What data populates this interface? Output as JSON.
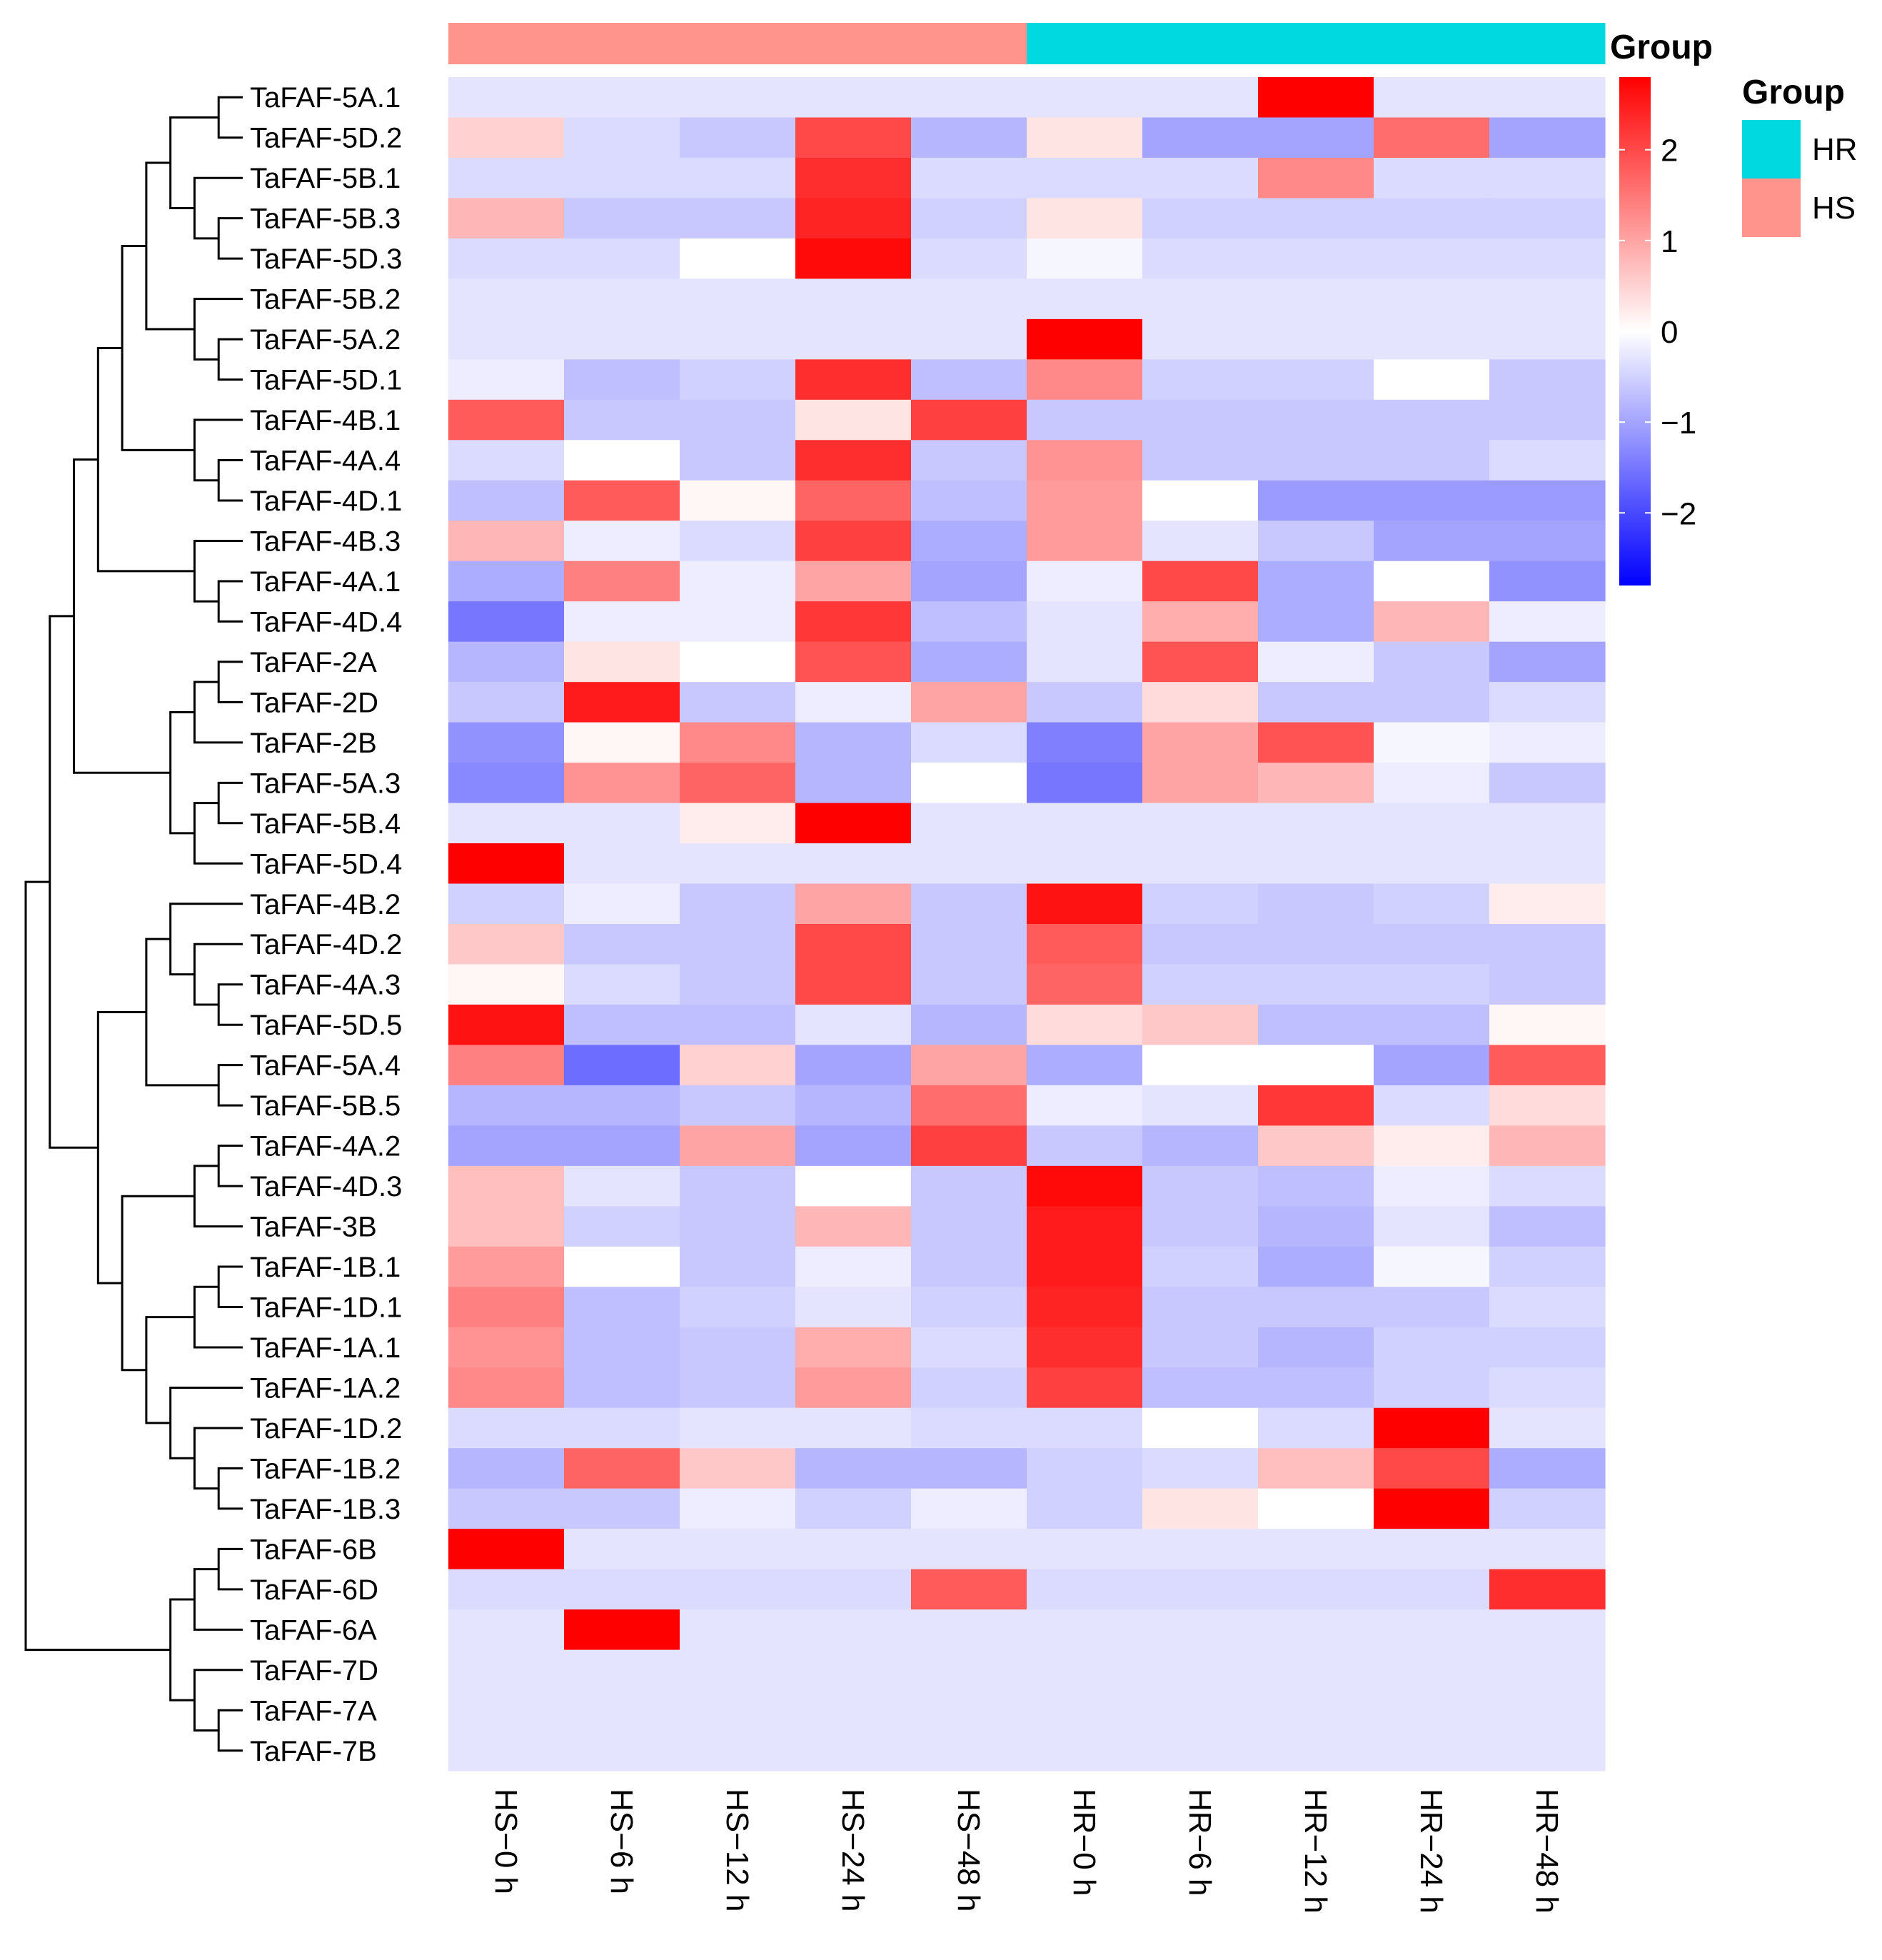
{
  "chart_data": {
    "type": "heatmap",
    "title": "",
    "columns": [
      "HS−0 h",
      "HS−6 h",
      "HS−12 h",
      "HS−24 h",
      "HS−48 h",
      "HR−0 h",
      "HR−6 h",
      "HR−12 h",
      "HR−24 h",
      "HR−48 h"
    ],
    "column_groups": [
      "HS",
      "HS",
      "HS",
      "HS",
      "HS",
      "HR",
      "HR",
      "HR",
      "HR",
      "HR"
    ],
    "rows": [
      "TaFAF-5A.1",
      "TaFAF-5D.2",
      "TaFAF-5B.1",
      "TaFAF-5B.3",
      "TaFAF-5D.3",
      "TaFAF-5B.2",
      "TaFAF-5A.2",
      "TaFAF-5D.1",
      "TaFAF-4B.1",
      "TaFAF-4A.4",
      "TaFAF-4D.1",
      "TaFAF-4B.3",
      "TaFAF-4A.1",
      "TaFAF-4D.4",
      "TaFAF-2A",
      "TaFAF-2D",
      "TaFAF-2B",
      "TaFAF-5A.3",
      "TaFAF-5B.4",
      "TaFAF-5D.4",
      "TaFAF-4B.2",
      "TaFAF-4D.2",
      "TaFAF-4A.3",
      "TaFAF-5D.5",
      "TaFAF-5A.4",
      "TaFAF-5B.5",
      "TaFAF-4A.2",
      "TaFAF-4D.3",
      "TaFAF-3B",
      "TaFAF-1B.1",
      "TaFAF-1D.1",
      "TaFAF-1A.1",
      "TaFAF-1A.2",
      "TaFAF-1D.2",
      "TaFAF-1B.2",
      "TaFAF-1B.3",
      "TaFAF-6B",
      "TaFAF-6D",
      "TaFAF-6A",
      "TaFAF-7D",
      "TaFAF-7A",
      "TaFAF-7B"
    ],
    "values": [
      [
        -0.3,
        -0.3,
        -0.3,
        -0.3,
        -0.3,
        -0.3,
        -0.3,
        2.8,
        -0.3,
        -0.3
      ],
      [
        0.5,
        -0.4,
        -0.6,
        2.0,
        -0.8,
        0.3,
        -1.0,
        -1.0,
        1.6,
        -1.0
      ],
      [
        -0.4,
        -0.4,
        -0.4,
        2.3,
        -0.4,
        -0.4,
        -0.4,
        1.3,
        -0.4,
        -0.4
      ],
      [
        0.8,
        -0.6,
        -0.6,
        2.4,
        -0.5,
        0.3,
        -0.5,
        -0.5,
        -0.5,
        -0.5
      ],
      [
        -0.4,
        -0.4,
        0.0,
        2.7,
        -0.4,
        -0.1,
        -0.4,
        -0.4,
        -0.4,
        -0.4
      ],
      [
        -0.3,
        -0.3,
        -0.3,
        -0.3,
        -0.3,
        -0.3,
        -0.3,
        -0.3,
        -0.3,
        -0.3
      ],
      [
        -0.3,
        -0.3,
        -0.3,
        -0.3,
        -0.3,
        2.8,
        -0.3,
        -0.3,
        -0.3,
        -0.3
      ],
      [
        -0.2,
        -0.7,
        -0.5,
        2.3,
        -0.7,
        1.3,
        -0.5,
        -0.5,
        0.0,
        -0.6
      ],
      [
        1.8,
        -0.6,
        -0.6,
        0.3,
        2.1,
        -0.6,
        -0.6,
        -0.6,
        -0.6,
        -0.6
      ],
      [
        -0.4,
        0.0,
        -0.6,
        2.3,
        -0.6,
        1.2,
        -0.6,
        -0.6,
        -0.6,
        -0.4
      ],
      [
        -0.7,
        1.8,
        0.1,
        1.7,
        -0.7,
        1.1,
        0.0,
        -1.1,
        -1.1,
        -1.1
      ],
      [
        0.8,
        -0.2,
        -0.4,
        2.1,
        -0.9,
        1.1,
        -0.3,
        -0.6,
        -1.0,
        -1.0
      ],
      [
        -0.9,
        1.4,
        -0.2,
        1.0,
        -1.0,
        -0.2,
        2.0,
        -0.9,
        0.0,
        -1.2
      ],
      [
        -1.5,
        -0.2,
        -0.2,
        2.2,
        -0.7,
        -0.3,
        0.9,
        -0.9,
        0.8,
        -0.2
      ],
      [
        -0.8,
        0.3,
        0.0,
        1.9,
        -0.9,
        -0.3,
        1.9,
        -0.2,
        -0.6,
        -1.0
      ],
      [
        -0.6,
        2.5,
        -0.6,
        -0.2,
        1.0,
        -0.6,
        0.4,
        -0.6,
        -0.6,
        -0.4
      ],
      [
        -1.2,
        0.1,
        1.3,
        -0.8,
        -0.4,
        -1.4,
        1.0,
        1.9,
        -0.1,
        -0.2
      ],
      [
        -1.3,
        1.2,
        1.7,
        -0.8,
        0.0,
        -1.5,
        1.0,
        0.8,
        -0.2,
        -0.6
      ],
      [
        -0.3,
        -0.3,
        0.2,
        2.8,
        -0.3,
        -0.3,
        -0.3,
        -0.3,
        -0.3,
        -0.3
      ],
      [
        2.8,
        -0.3,
        -0.3,
        -0.3,
        -0.3,
        -0.3,
        -0.3,
        -0.3,
        -0.3,
        -0.3
      ],
      [
        -0.5,
        -0.2,
        -0.6,
        1.0,
        -0.6,
        2.6,
        -0.5,
        -0.6,
        -0.5,
        0.2
      ],
      [
        0.6,
        -0.6,
        -0.6,
        2.0,
        -0.6,
        1.8,
        -0.6,
        -0.6,
        -0.6,
        -0.6
      ],
      [
        0.1,
        -0.4,
        -0.6,
        2.0,
        -0.6,
        1.7,
        -0.5,
        -0.5,
        -0.5,
        -0.6
      ],
      [
        2.6,
        -0.7,
        -0.7,
        -0.3,
        -0.8,
        0.4,
        0.6,
        -0.7,
        -0.7,
        0.1
      ],
      [
        1.4,
        -1.6,
        0.5,
        -1.0,
        1.0,
        -0.9,
        0.0,
        0.0,
        -1.0,
        1.8
      ],
      [
        -0.8,
        -0.8,
        -0.6,
        -0.8,
        1.6,
        -0.2,
        -0.3,
        2.2,
        -0.4,
        0.4
      ],
      [
        -1.0,
        -1.0,
        1.0,
        -1.0,
        2.1,
        -0.6,
        -0.8,
        0.6,
        0.2,
        0.8
      ],
      [
        0.7,
        -0.3,
        -0.6,
        0.0,
        -0.6,
        2.7,
        -0.6,
        -0.7,
        -0.2,
        -0.4
      ],
      [
        0.7,
        -0.5,
        -0.6,
        0.8,
        -0.6,
        2.5,
        -0.6,
        -0.8,
        -0.3,
        -0.7
      ],
      [
        1.1,
        0.0,
        -0.6,
        -0.2,
        -0.6,
        2.5,
        -0.5,
        -0.9,
        -0.1,
        -0.5
      ],
      [
        1.4,
        -0.7,
        -0.5,
        -0.3,
        -0.5,
        2.4,
        -0.6,
        -0.6,
        -0.6,
        -0.4
      ],
      [
        1.2,
        -0.7,
        -0.6,
        0.9,
        -0.4,
        2.3,
        -0.6,
        -0.8,
        -0.5,
        -0.5
      ],
      [
        1.3,
        -0.7,
        -0.6,
        1.1,
        -0.5,
        2.1,
        -0.7,
        -0.7,
        -0.5,
        -0.4
      ],
      [
        -0.4,
        -0.4,
        -0.3,
        -0.3,
        -0.4,
        -0.4,
        0.0,
        -0.4,
        2.8,
        -0.3
      ],
      [
        -0.8,
        1.7,
        0.6,
        -0.8,
        -0.8,
        -0.5,
        -0.4,
        0.7,
        2.0,
        -0.9
      ],
      [
        -0.6,
        -0.6,
        -0.2,
        -0.5,
        -0.2,
        -0.5,
        0.3,
        0.0,
        2.8,
        -0.5
      ],
      [
        2.8,
        -0.3,
        -0.3,
        -0.3,
        -0.3,
        -0.3,
        -0.3,
        -0.3,
        -0.3,
        -0.3
      ],
      [
        -0.4,
        -0.4,
        -0.4,
        -0.4,
        1.8,
        -0.4,
        -0.4,
        -0.4,
        -0.4,
        2.3
      ],
      [
        -0.3,
        2.8,
        -0.3,
        -0.3,
        -0.3,
        -0.3,
        -0.3,
        -0.3,
        -0.3,
        -0.3
      ],
      [
        -0.3,
        -0.3,
        -0.3,
        -0.3,
        -0.3,
        -0.3,
        -0.3,
        -0.3,
        -0.3,
        -0.3
      ],
      [
        -0.3,
        -0.3,
        -0.3,
        -0.3,
        -0.3,
        -0.3,
        -0.3,
        -0.3,
        -0.3,
        -0.3
      ],
      [
        -0.3,
        -0.3,
        -0.3,
        -0.3,
        -0.3,
        -0.3,
        -0.3,
        -0.3,
        -0.3,
        -0.3
      ]
    ],
    "color_scale": {
      "min": -2.8,
      "max": 2.8,
      "low": "#0000ff",
      "mid": "#ffffff",
      "high": "#ff0000"
    },
    "colorbar_ticks": [
      2,
      1,
      0,
      -1,
      -2
    ],
    "colorbar_tick_labels": [
      "2",
      "1",
      "0",
      "−1",
      "−2"
    ],
    "group_annotation": {
      "title": "Group",
      "legend_title": "Group",
      "entries": [
        {
          "label": "HR",
          "color": "#00d9e0"
        },
        {
          "label": "HS",
          "color": "#ff948c"
        }
      ]
    },
    "row_dendrogram": "clustered",
    "legend": "right"
  }
}
